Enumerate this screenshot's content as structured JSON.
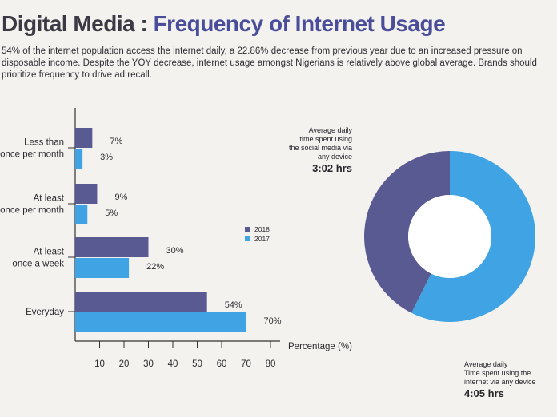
{
  "title_part1": "Digital Media : ",
  "title_part2": "Frequency of Internet Usage",
  "intro": "54% of the internet population access the internet daily, a 22.86% decrease from previous year due to an increased pressure on disposable income. Despite the YOY decrease, internet usage amongst Nigerians is relatively above global average. Brands should prioritize frequency to drive ad recall.",
  "colors": {
    "s2018": "#5a5a92",
    "s2017": "#3fa3e4",
    "axis": "#333333"
  },
  "chart_data": [
    {
      "type": "bar",
      "orientation": "horizontal",
      "categories": [
        [
          "Less than",
          "once per month"
        ],
        [
          "At least",
          "once per month"
        ],
        [
          "At least",
          "once a week"
        ],
        [
          "Everyday"
        ]
      ],
      "series": [
        {
          "name": "2018",
          "values": [
            7,
            9,
            30,
            54
          ],
          "labels": [
            "7%",
            "9%",
            "30%",
            "54%"
          ]
        },
        {
          "name": "2017",
          "values": [
            3,
            5,
            22,
            70
          ],
          "labels": [
            "3%",
            "5%",
            "22%",
            "70%"
          ]
        }
      ],
      "xticks": [
        10,
        20,
        30,
        40,
        50,
        60,
        70,
        80
      ],
      "xlabel": "Percentage (%)",
      "xlim": [
        0,
        80
      ],
      "legend": "right"
    },
    {
      "type": "pie",
      "donut": true,
      "slices": [
        {
          "value": 3.03,
          "color": "#5a5a92"
        },
        {
          "value": 4.08,
          "color": "#3fa3e4"
        }
      ],
      "annotations": [
        {
          "lines": [
            "Average daily",
            "time spent using",
            "the social media via",
            "any device"
          ],
          "value": "3:02 hrs"
        },
        {
          "lines": [
            "Average daily",
            "Time spent using the",
            "internet via any device"
          ],
          "value": "4:05 hrs"
        }
      ]
    }
  ]
}
